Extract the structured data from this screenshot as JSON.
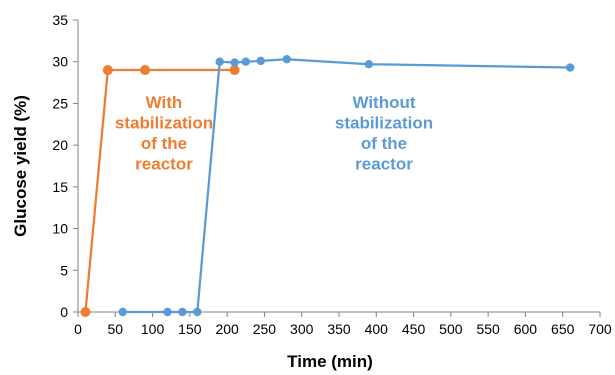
{
  "chart_data": {
    "type": "line",
    "xlabel": "Time (min)",
    "ylabel": "Glucose yield (%)",
    "xlim": [
      0,
      700
    ],
    "ylim": [
      0,
      35
    ],
    "x_ticks": [
      0,
      50,
      100,
      150,
      200,
      250,
      300,
      350,
      400,
      450,
      500,
      550,
      600,
      650,
      700
    ],
    "y_ticks": [
      0,
      5,
      10,
      15,
      20,
      25,
      30,
      35
    ],
    "grid": false,
    "series": [
      {
        "color": "#ED7D31",
        "points": [
          {
            "x": 10,
            "y": 0
          },
          {
            "x": 40,
            "y": 29
          },
          {
            "x": 90,
            "y": 29
          },
          {
            "x": 210,
            "y": 29
          }
        ]
      },
      {
        "color": "#5B9BD5",
        "points": [
          {
            "x": 60,
            "y": 0
          },
          {
            "x": 120,
            "y": 0
          },
          {
            "x": 140,
            "y": 0
          },
          {
            "x": 160,
            "y": 0
          },
          {
            "x": 190,
            "y": 30
          },
          {
            "x": 210,
            "y": 29.9
          },
          {
            "x": 225,
            "y": 30
          },
          {
            "x": 245,
            "y": 30.1
          },
          {
            "x": 280,
            "y": 30.3
          },
          {
            "x": 390,
            "y": 29.7
          },
          {
            "x": 660,
            "y": 29.3
          }
        ]
      }
    ],
    "annotations": [
      {
        "color": "#ED7D31",
        "lines": [
          "With",
          "stabilization",
          "of the",
          "reactor"
        ]
      },
      {
        "color": "#5B9BD5",
        "lines": [
          "Without",
          "stabilization",
          "of the",
          "reactor"
        ]
      }
    ]
  }
}
